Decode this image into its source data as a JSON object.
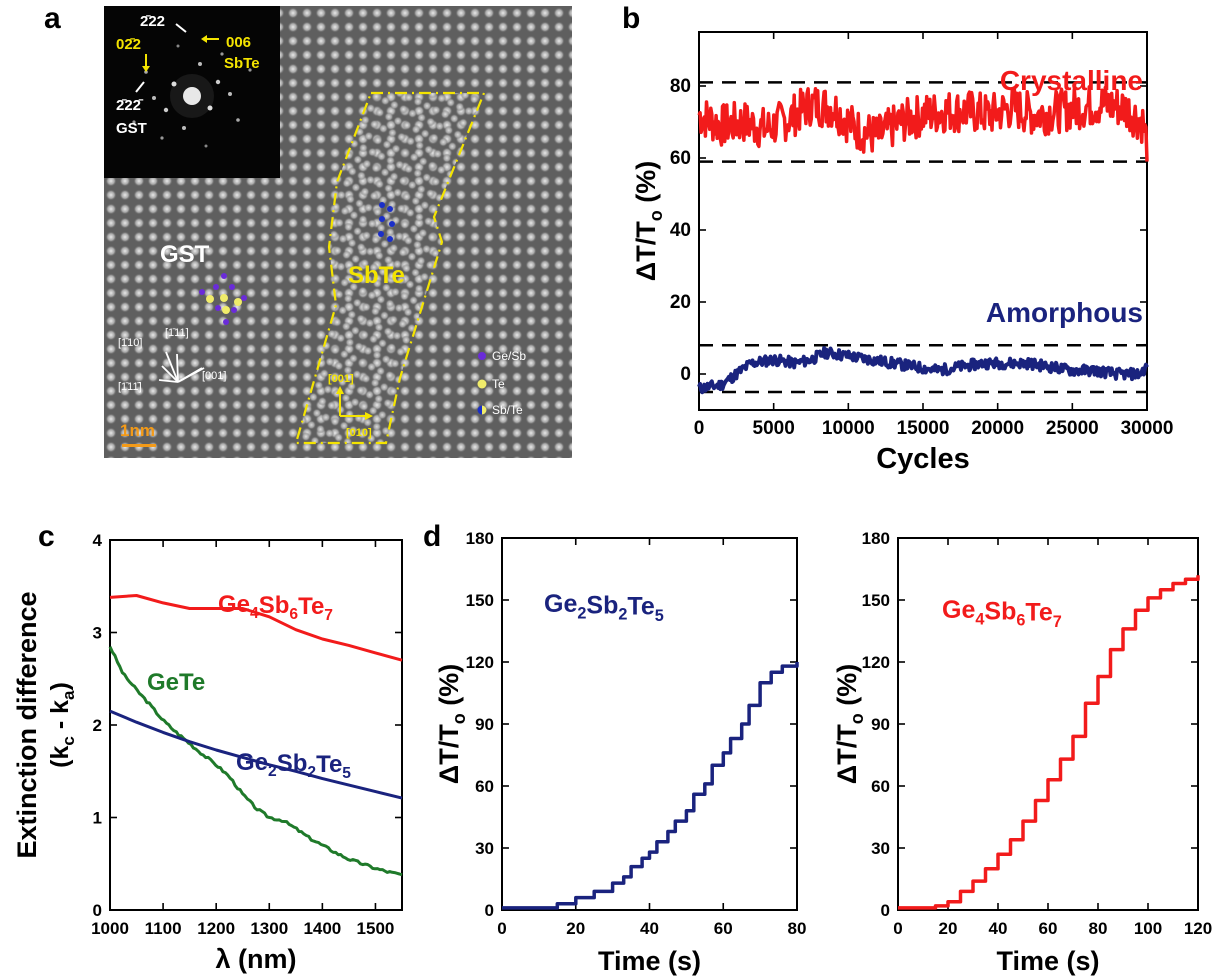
{
  "panels": {
    "a": "a",
    "b": "b",
    "c": "c",
    "d": "d"
  },
  "colors": {
    "red": "#f21b1b",
    "navy": "#1a237e",
    "green": "#1f7a2a",
    "yellow": "#f4e400",
    "orange": "#f39a18"
  },
  "tem": {
    "inset": {
      "labels": [
        "2̄22",
        "02̄2",
        "006",
        "SbTe",
        "2̄22̄",
        "GST"
      ]
    },
    "gst_label": "GST",
    "sbte_label": "SbTe",
    "axes_gst": [
      "[1̄10]",
      "[1̄11]",
      "[001]",
      "[1̄11̄]"
    ],
    "axes_sbte": [
      "[001]",
      "[010]"
    ],
    "legend": [
      "Ge/Sb",
      "Te",
      "Sb/Te"
    ],
    "scale_bar": "1nm"
  },
  "chart_data": [
    {
      "panel": "b",
      "type": "line",
      "xlabel": "Cycles",
      "ylabel": "ΔT/T_o (%)",
      "xlim": [
        0,
        30000
      ],
      "ylim": [
        -10,
        95
      ],
      "xticks": [
        0,
        5000,
        10000,
        15000,
        20000,
        25000,
        30000
      ],
      "yticks": [
        0,
        20,
        40,
        60,
        80
      ],
      "series": [
        {
          "name": "Crystalline",
          "color": "#f21b1b",
          "x": [
            0,
            1500,
            3000,
            4500,
            6000,
            7500,
            9000,
            10500,
            12000,
            13500,
            15000,
            16500,
            18000,
            19500,
            21000,
            22500,
            24000,
            25500,
            27000,
            28500,
            29700,
            30000
          ],
          "y": [
            72,
            69,
            70,
            68,
            71,
            75,
            74,
            68,
            66,
            70,
            72,
            73,
            73,
            72,
            74,
            72,
            73,
            74,
            75,
            74,
            70,
            64
          ]
        },
        {
          "name": "Amorphous",
          "color": "#1a237e",
          "x": [
            0,
            1500,
            2500,
            3500,
            5000,
            6500,
            7500,
            8500,
            10000,
            11500,
            13000,
            14500,
            16000,
            17500,
            19000,
            20500,
            22000,
            23500,
            25000,
            26500,
            28000,
            29500,
            30000
          ],
          "y": [
            -4,
            -3,
            0,
            3,
            4,
            3,
            4,
            6,
            5,
            4,
            3,
            2,
            1,
            2,
            3,
            3,
            3,
            2,
            1,
            1,
            0,
            0,
            2
          ]
        }
      ],
      "hlines": [
        81,
        59,
        8,
        -5
      ]
    },
    {
      "panel": "c",
      "type": "line",
      "xlabel": "λ (nm)",
      "ylabel": "Extinction difference",
      "ylabel2": "(k_c - k_a)",
      "xlim": [
        1000,
        1550
      ],
      "ylim": [
        0,
        4
      ],
      "xticks": [
        1000,
        1100,
        1200,
        1300,
        1400,
        1500
      ],
      "yticks": [
        0,
        1,
        2,
        3,
        4
      ],
      "series": [
        {
          "name": "Ge4Sb6Te7",
          "color": "#f21b1b",
          "x": [
            1000,
            1050,
            1100,
            1150,
            1200,
            1250,
            1300,
            1350,
            1400,
            1450,
            1500,
            1550
          ],
          "y": [
            3.38,
            3.4,
            3.32,
            3.26,
            3.26,
            3.26,
            3.17,
            3.03,
            2.93,
            2.86,
            2.78,
            2.7
          ]
        },
        {
          "name": "GeTe",
          "color": "#1f7a2a",
          "x": [
            1000,
            1025,
            1050,
            1075,
            1100,
            1125,
            1150,
            1175,
            1200,
            1225,
            1250,
            1275,
            1300,
            1325,
            1350,
            1375,
            1400,
            1425,
            1450,
            1475,
            1500,
            1525,
            1550
          ],
          "y": [
            2.85,
            2.55,
            2.38,
            2.22,
            2.05,
            1.92,
            1.8,
            1.68,
            1.57,
            1.44,
            1.25,
            1.1,
            1.0,
            0.97,
            0.88,
            0.78,
            0.7,
            0.62,
            0.55,
            0.5,
            0.45,
            0.41,
            0.38
          ]
        },
        {
          "name": "Ge2Sb2Te5",
          "color": "#1a237e",
          "x": [
            1000,
            1050,
            1100,
            1150,
            1200,
            1250,
            1300,
            1350,
            1400,
            1450,
            1500,
            1550
          ],
          "y": [
            2.15,
            2.03,
            1.92,
            1.82,
            1.73,
            1.65,
            1.57,
            1.5,
            1.42,
            1.35,
            1.28,
            1.21
          ]
        }
      ]
    },
    {
      "panel": "d-left",
      "type": "line",
      "xlabel": "Time (s)",
      "ylabel": "ΔT/T_o (%)",
      "xlim": [
        0,
        80
      ],
      "ylim": [
        0,
        180
      ],
      "xticks": [
        0,
        20,
        40,
        60,
        80
      ],
      "yticks": [
        0,
        30,
        60,
        90,
        120,
        150,
        180
      ],
      "series": [
        {
          "name": "Ge2Sb2Te5",
          "color": "#1a237e",
          "x": [
            0,
            5,
            10,
            13,
            15,
            20,
            25,
            30,
            33,
            35,
            38,
            40,
            42,
            45,
            47,
            50,
            52,
            55,
            57,
            60,
            62,
            65,
            67,
            70,
            73,
            76,
            80
          ],
          "y": [
            1,
            1,
            1,
            1,
            3,
            6,
            9,
            13,
            16,
            21,
            25,
            28,
            33,
            38,
            43,
            48,
            56,
            61,
            70,
            76,
            83,
            90,
            99,
            110,
            115,
            118,
            120
          ]
        }
      ]
    },
    {
      "panel": "d-right",
      "type": "line",
      "xlabel": "Time (s)",
      "ylabel": "ΔT/T_o (%)",
      "xlim": [
        0,
        120
      ],
      "ylim": [
        0,
        180
      ],
      "xticks": [
        0,
        20,
        40,
        60,
        80,
        100,
        120
      ],
      "yticks": [
        0,
        30,
        60,
        90,
        120,
        150,
        180
      ],
      "series": [
        {
          "name": "Ge4Sb6Te7",
          "color": "#f21b1b",
          "x": [
            0,
            10,
            15,
            20,
            25,
            30,
            35,
            40,
            45,
            50,
            55,
            60,
            65,
            70,
            75,
            80,
            85,
            90,
            95,
            100,
            105,
            110,
            115,
            120
          ],
          "y": [
            1,
            1,
            2,
            4,
            9,
            14,
            20,
            27,
            34,
            43,
            53,
            63,
            73,
            84,
            100,
            113,
            126,
            136,
            145,
            151,
            155,
            158,
            160,
            162
          ]
        }
      ]
    }
  ],
  "labels": {
    "b": {
      "series1": "Crystalline",
      "series2": "Amorphous"
    },
    "c": {
      "s1_base": "Ge",
      "s1_sub1": "4",
      "s1_m1": "Sb",
      "s1_sub2": "6",
      "s1_m2": "Te",
      "s1_sub3": "7",
      "s2": "GeTe",
      "s3_base": "Ge",
      "s3_sub1": "2",
      "s3_m1": "Sb",
      "s3_sub2": "2",
      "s3_m2": "Te",
      "s3_sub3": "5"
    },
    "d_left": {
      "base": "Ge",
      "sub1": "2",
      "m1": "Sb",
      "sub2": "2",
      "m2": "Te",
      "sub3": "5"
    },
    "d_right": {
      "base": "Ge",
      "sub1": "4",
      "m1": "Sb",
      "sub2": "6",
      "m2": "Te",
      "sub3": "7"
    }
  }
}
